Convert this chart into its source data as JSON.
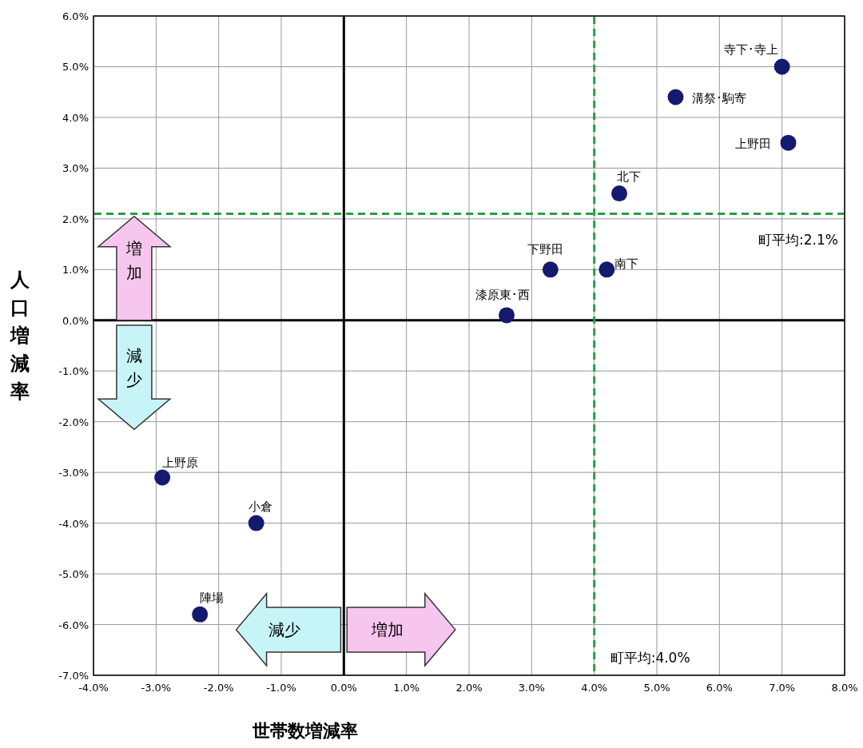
{
  "chart_data": {
    "type": "scatter",
    "xlabel": "世帯数増減率",
    "ylabel": "人口増減率",
    "xlim": [
      -4,
      8
    ],
    "ylim": [
      -7,
      6
    ],
    "xticks": [
      {
        "value": -4,
        "label": "-4.0%"
      },
      {
        "value": -3,
        "label": "-3.0%"
      },
      {
        "value": -2,
        "label": "-2.0%"
      },
      {
        "value": -1,
        "label": "-1.0%"
      },
      {
        "value": 0,
        "label": "0.0%"
      },
      {
        "value": 1,
        "label": "1.0%"
      },
      {
        "value": 2,
        "label": "2.0%"
      },
      {
        "value": 3,
        "label": "3.0%"
      },
      {
        "value": 4,
        "label": "4.0%"
      },
      {
        "value": 5,
        "label": "5.0%"
      },
      {
        "value": 6,
        "label": "6.0%"
      },
      {
        "value": 7,
        "label": "7.0%"
      },
      {
        "value": 8,
        "label": "8.0%"
      }
    ],
    "yticks": [
      {
        "value": -7,
        "label": "-7.0%"
      },
      {
        "value": -6,
        "label": "-6.0%"
      },
      {
        "value": -5,
        "label": "-5.0%"
      },
      {
        "value": -4,
        "label": "-4.0%"
      },
      {
        "value": -3,
        "label": "-3.0%"
      },
      {
        "value": -2,
        "label": "-2.0%"
      },
      {
        "value": -1,
        "label": "-1.0%"
      },
      {
        "value": 0,
        "label": "0.0%"
      },
      {
        "value": 1,
        "label": "1.0%"
      },
      {
        "value": 2,
        "label": "2.0%"
      },
      {
        "value": 3,
        "label": "3.0%"
      },
      {
        "value": 4,
        "label": "4.0%"
      },
      {
        "value": 5,
        "label": "5.0%"
      },
      {
        "value": 6,
        "label": "6.0%"
      }
    ],
    "grid": true,
    "legend": false,
    "marker": "circle",
    "series": [
      {
        "name": "寺下･寺上",
        "color": "#141a6e",
        "x": [
          7.0
        ],
        "values": [
          5.0
        ]
      },
      {
        "name": "溝祭･駒寄",
        "color": "#141a6e",
        "x": [
          5.3
        ],
        "values": [
          4.4
        ]
      },
      {
        "name": "上野田",
        "color": "#141a6e",
        "x": [
          7.1
        ],
        "values": [
          3.5
        ]
      },
      {
        "name": "北下",
        "color": "#141a6e",
        "x": [
          4.4
        ],
        "values": [
          2.5
        ]
      },
      {
        "name": "下野田",
        "color": "#141a6e",
        "x": [
          3.3
        ],
        "values": [
          1.0
        ]
      },
      {
        "name": "南下",
        "color": "#141a6e",
        "x": [
          4.2
        ],
        "values": [
          1.0
        ]
      },
      {
        "name": "漆原東･西",
        "color": "#141a6e",
        "x": [
          2.6
        ],
        "values": [
          0.1
        ]
      },
      {
        "name": "上野原",
        "color": "#141a6e",
        "x": [
          -2.9
        ],
        "values": [
          -3.1
        ]
      },
      {
        "name": "小倉",
        "color": "#141a6e",
        "x": [
          -1.4
        ],
        "values": [
          -4.0
        ]
      },
      {
        "name": "陣場",
        "color": "#141a6e",
        "x": [
          -2.3
        ],
        "values": [
          -5.8
        ]
      }
    ],
    "ref_lines": [
      {
        "axis": "x",
        "value": 4.0,
        "label": "町平均:4.0%",
        "color": "#21a049",
        "line_style": "dashed"
      },
      {
        "axis": "y",
        "value": 2.1,
        "label": "町平均:2.1%",
        "color": "#21a049",
        "line_style": "dashed"
      }
    ],
    "annotations": [
      "増加",
      "減少",
      "減少",
      "増加"
    ]
  }
}
